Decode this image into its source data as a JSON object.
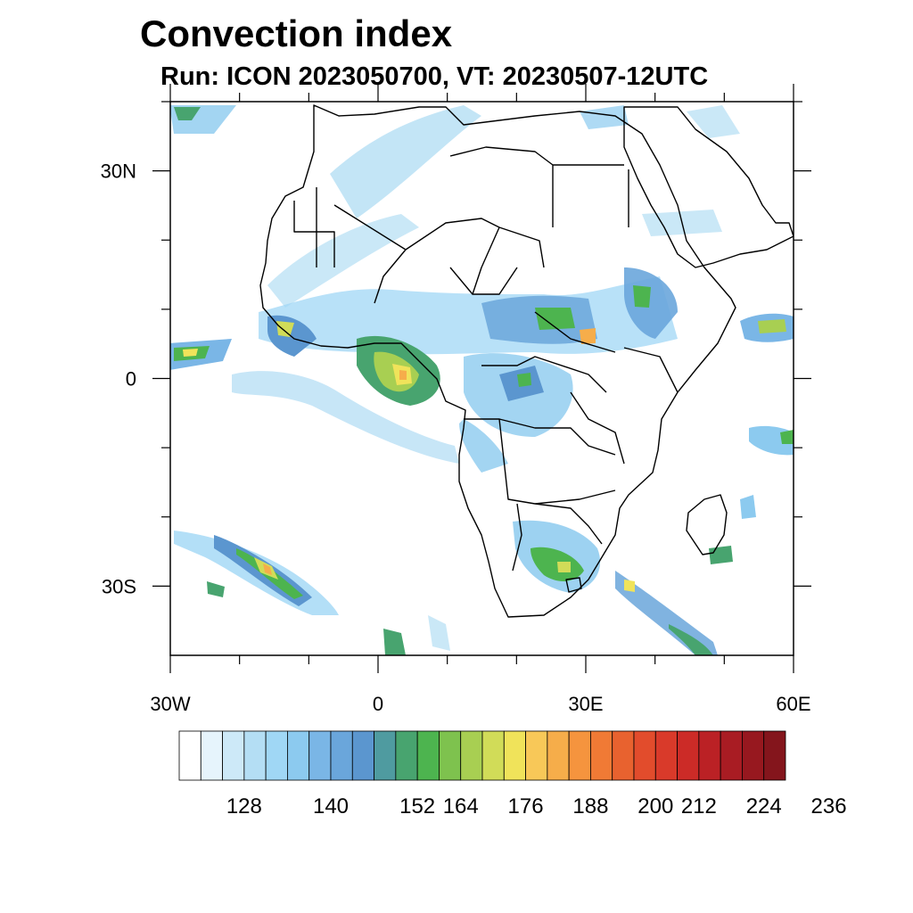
{
  "title": "Convection index",
  "subtitle": "Run: ICON 2023050700,  VT: 20230507-12UTC",
  "map": {
    "lon_range": [
      -30,
      60
    ],
    "lat_range": [
      -40,
      40
    ],
    "x_ticks": [
      {
        "lon": -30,
        "label": "30W"
      },
      {
        "lon": 0,
        "label": "0"
      },
      {
        "lon": 30,
        "label": "30E"
      },
      {
        "lon": 60,
        "label": "60E"
      }
    ],
    "y_ticks": [
      {
        "lat": 30,
        "label": "30N"
      },
      {
        "lat": 0,
        "label": "0"
      },
      {
        "lat": -30,
        "label": "30S"
      }
    ],
    "land_outline_color": "#000000"
  },
  "colorbar": {
    "colors": [
      "#ffffff",
      "#e6f4fc",
      "#cde9f8",
      "#b4def4",
      "#a0d7f5",
      "#8ccaef",
      "#7ab6e6",
      "#6aa6db",
      "#5b96cf",
      "#4f9ba0",
      "#48a46f",
      "#4db44f",
      "#7ec24e",
      "#a8cf52",
      "#d1dc58",
      "#f0e35a",
      "#f8c858",
      "#f6ad4a",
      "#f5943e",
      "#f07a35",
      "#e8622f",
      "#e24c2c",
      "#d93a2a",
      "#cc2b27",
      "#bb2125",
      "#a91c23",
      "#97181f",
      "#84151c"
    ],
    "labels": [
      "128",
      "140",
      "152",
      "164",
      "176",
      "188",
      "200",
      "212",
      "224",
      "236"
    ],
    "label_after_box": [
      3,
      7,
      11,
      13,
      16,
      19,
      22,
      24,
      27,
      30
    ]
  }
}
